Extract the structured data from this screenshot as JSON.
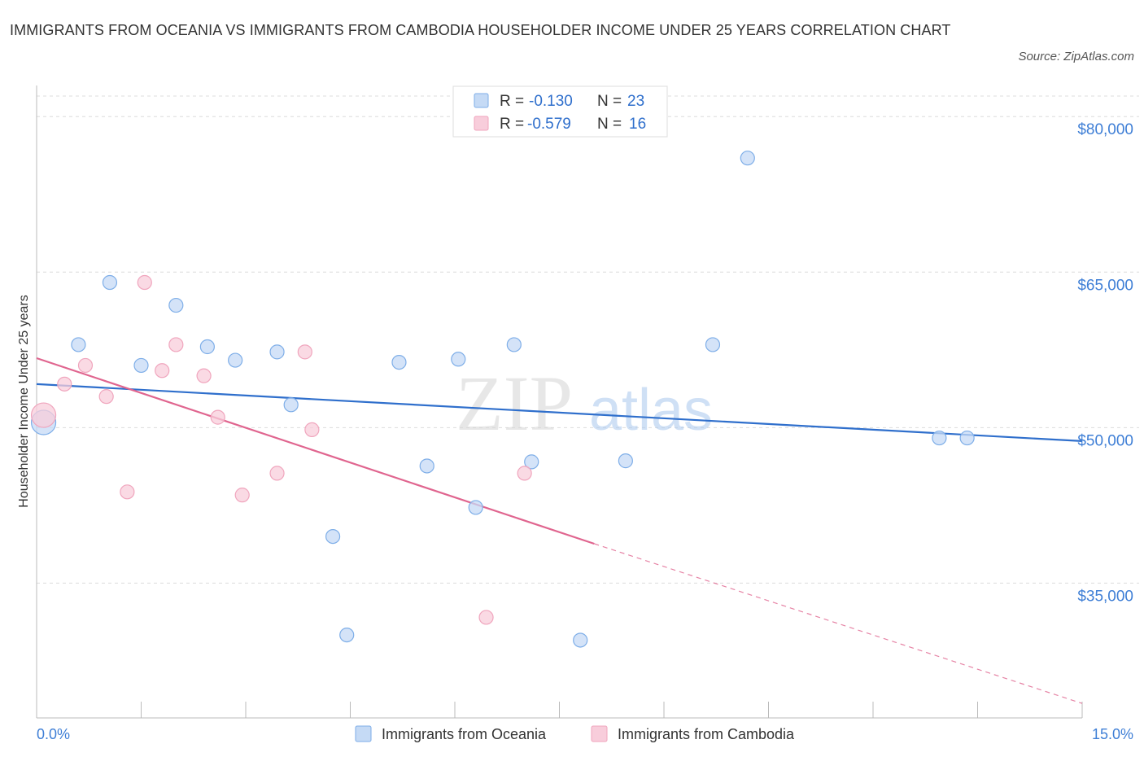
{
  "chart_data": {
    "type": "scatter",
    "title": "IMMIGRANTS FROM OCEANIA VS IMMIGRANTS FROM CAMBODIA HOUSEHOLDER INCOME UNDER 25 YEARS CORRELATION CHART",
    "source": "Source: ZipAtlas.com",
    "ylabel": "Householder Income Under 25 years",
    "xlabel": "",
    "xlim": [
      0,
      15
    ],
    "ylim": [
      22000,
      83000
    ],
    "x_tick_labels": [
      "0.0%",
      "15.0%"
    ],
    "y_ticks": [
      {
        "value": 80000,
        "label": "$80,000"
      },
      {
        "value": 65000,
        "label": "$65,000"
      },
      {
        "value": 50000,
        "label": "$50,000"
      },
      {
        "value": 35000,
        "label": "$35,000"
      }
    ],
    "grid": true,
    "legend_position": "bottom-center",
    "watermark": "ZIPatlas",
    "stats": [
      {
        "r_label": "R = ",
        "r_value": "-0.130",
        "n_label": "N = ",
        "n_value": "23"
      },
      {
        "r_label": "R = ",
        "r_value": "-0.579",
        "n_label": "N = ",
        "n_value": "16"
      }
    ],
    "series": [
      {
        "name": "Immigrants from Oceania",
        "color": "#7eaee8",
        "fill": "#c5daf5",
        "line_color": "#2f6fcc",
        "points": [
          [
            0.1,
            50500
          ],
          [
            0.6,
            58000
          ],
          [
            1.05,
            64000
          ],
          [
            1.5,
            56000
          ],
          [
            2.0,
            61800
          ],
          [
            2.45,
            57800
          ],
          [
            2.85,
            56500
          ],
          [
            3.45,
            57300
          ],
          [
            3.65,
            52200
          ],
          [
            4.25,
            39500
          ],
          [
            4.45,
            30000
          ],
          [
            5.2,
            56300
          ],
          [
            5.6,
            46300
          ],
          [
            6.05,
            56600
          ],
          [
            6.3,
            42300
          ],
          [
            6.85,
            58000
          ],
          [
            7.1,
            46700
          ],
          [
            7.8,
            29500
          ],
          [
            8.45,
            46800
          ],
          [
            9.7,
            58000
          ],
          [
            10.2,
            76000
          ],
          [
            12.95,
            49000
          ],
          [
            13.35,
            49000
          ]
        ],
        "trend": {
          "x": [
            0,
            15
          ],
          "y": [
            54200,
            48700
          ]
        }
      },
      {
        "name": "Immigrants from Cambodia",
        "color": "#f0a5bd",
        "fill": "#f8cddb",
        "line_color": "#e0658f",
        "points": [
          [
            0.1,
            51200
          ],
          [
            0.4,
            54200
          ],
          [
            0.7,
            56000
          ],
          [
            1.0,
            53000
          ],
          [
            1.3,
            43800
          ],
          [
            1.55,
            64000
          ],
          [
            1.8,
            55500
          ],
          [
            2.0,
            58000
          ],
          [
            2.4,
            55000
          ],
          [
            2.6,
            51000
          ],
          [
            2.95,
            43500
          ],
          [
            3.45,
            45600
          ],
          [
            3.85,
            57300
          ],
          [
            3.95,
            49800
          ],
          [
            6.45,
            31700
          ],
          [
            7.0,
            45600
          ]
        ],
        "trend": {
          "x": [
            0,
            8.0
          ],
          "y": [
            56700,
            38800
          ]
        },
        "trend_dashed": {
          "x": [
            8.0,
            15
          ],
          "y": [
            38800,
            23400
          ]
        }
      }
    ]
  }
}
